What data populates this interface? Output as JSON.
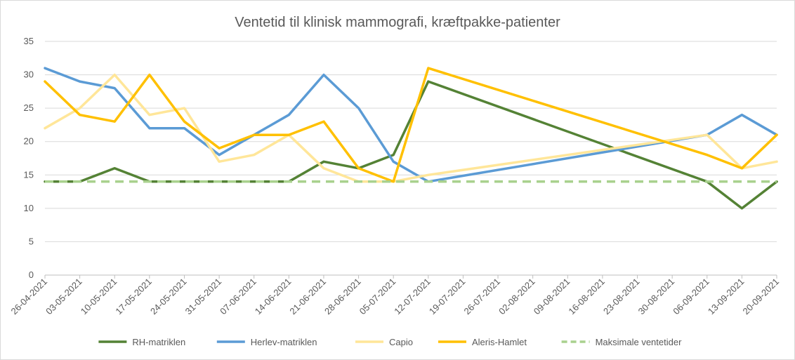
{
  "chart_data": {
    "type": "line",
    "title": "Ventetid til klinisk mammografi, kræftpakke-patienter",
    "xlabel": "",
    "ylabel": "",
    "ylim": [
      0,
      35
    ],
    "yticks": [
      0,
      5,
      10,
      15,
      20,
      25,
      30,
      35
    ],
    "grid": true,
    "legend_position": "bottom",
    "categories": [
      "26-04-2021",
      "03-05-2021",
      "10-05-2021",
      "17-05-2021",
      "24-05-2021",
      "31-05-2021",
      "07-06-2021",
      "14-06-2021",
      "21-06-2021",
      "28-06-2021",
      "05-07-2021",
      "12-07-2021",
      "19-07-2021",
      "26-07-2021",
      "02-08-2021",
      "09-08-2021",
      "16-08-2021",
      "23-08-2021",
      "30-08-2021",
      "06-09-2021",
      "13-09-2021",
      "20-09-2021"
    ],
    "series": [
      {
        "name": "RH-matriklen",
        "color": "#548235",
        "dash": false,
        "values": [
          14,
          14,
          16,
          14,
          14,
          14,
          14,
          14,
          17,
          16,
          18,
          29,
          null,
          null,
          null,
          null,
          null,
          null,
          null,
          14,
          10,
          14
        ]
      },
      {
        "name": "Herlev-matriklen",
        "color": "#5b9bd5",
        "dash": false,
        "values": [
          31,
          29,
          28,
          22,
          22,
          18,
          21,
          24,
          30,
          25,
          17,
          14,
          null,
          null,
          null,
          null,
          null,
          null,
          null,
          21,
          24,
          21
        ]
      },
      {
        "name": "Capio",
        "color": "#ffe699",
        "dash": false,
        "values": [
          22,
          25,
          30,
          24,
          25,
          17,
          18,
          21,
          16,
          14,
          14,
          15,
          null,
          null,
          null,
          null,
          null,
          null,
          null,
          21,
          16,
          17
        ]
      },
      {
        "name": "Aleris-Hamlet",
        "color": "#ffc000",
        "dash": false,
        "values": [
          29,
          24,
          23,
          30,
          23,
          19,
          21,
          21,
          23,
          16,
          14,
          31,
          null,
          null,
          null,
          null,
          null,
          null,
          null,
          18,
          16,
          21
        ]
      },
      {
        "name": "Maksimale ventetider",
        "color": "#a9d18e",
        "dash": true,
        "values": [
          14,
          14,
          14,
          14,
          14,
          14,
          14,
          14,
          14,
          14,
          14,
          14,
          14,
          14,
          14,
          14,
          14,
          14,
          14,
          14,
          14,
          14
        ]
      }
    ]
  }
}
